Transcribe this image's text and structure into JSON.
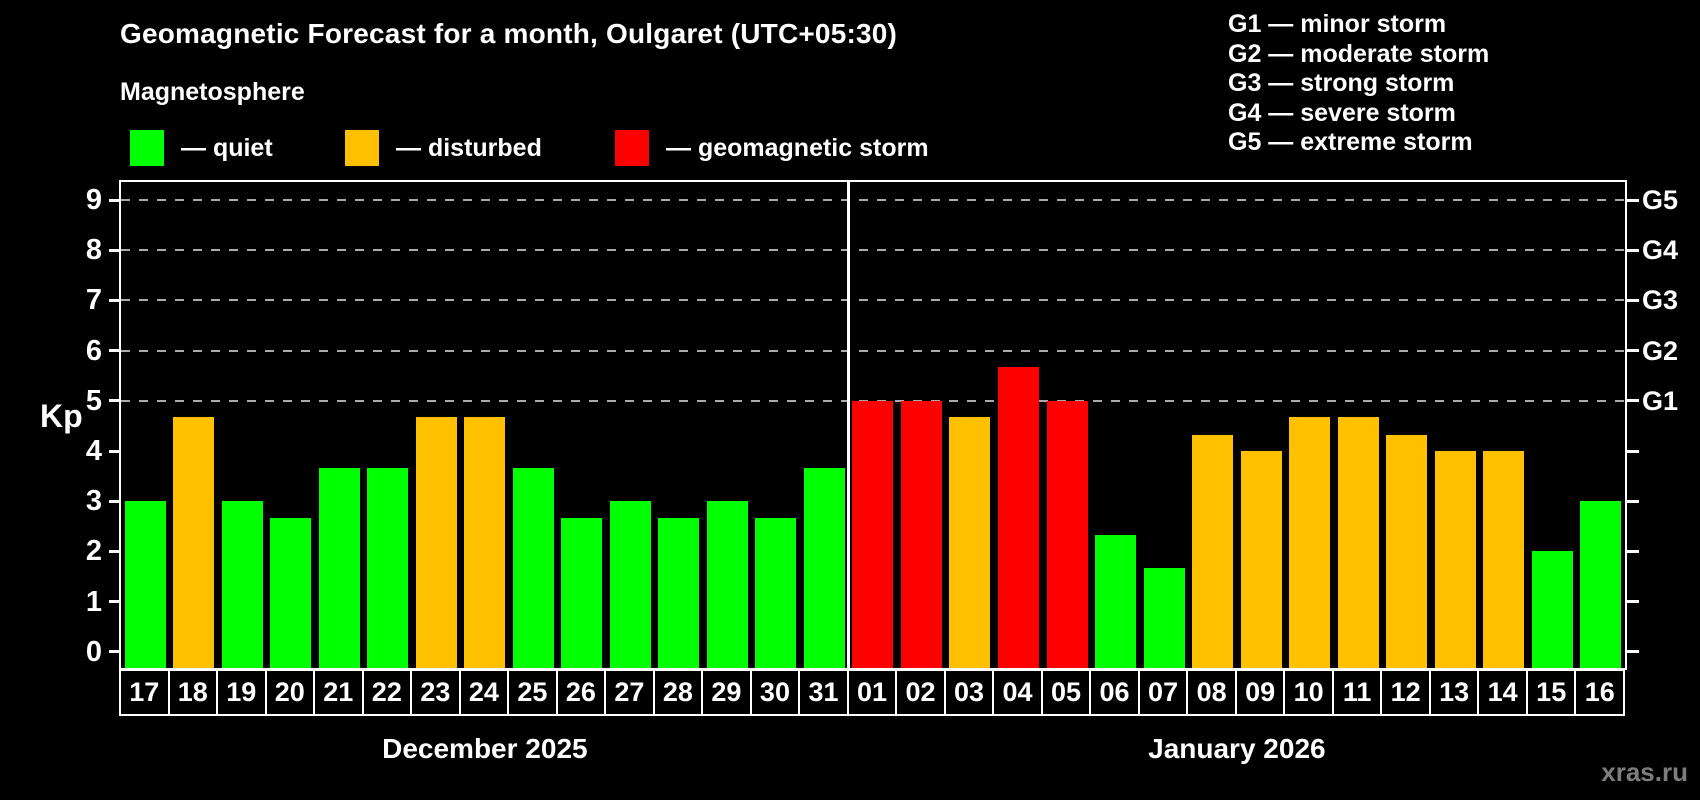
{
  "title": "Geomagnetic Forecast for a month, Oulgaret (UTC+05:30)",
  "subtitle": "Magnetosphere",
  "legend": {
    "items": [
      {
        "key": "quiet",
        "label": "— quiet",
        "color": "#00ff00"
      },
      {
        "key": "disturbed",
        "label": "— disturbed",
        "color": "#ffc000"
      },
      {
        "key": "storm",
        "label": "— geomagnetic storm",
        "color": "#ff0000"
      }
    ]
  },
  "g_legend": {
    "items": [
      {
        "label": "G1 — minor storm"
      },
      {
        "label": "G2 — moderate storm"
      },
      {
        "label": "G3 — strong storm"
      },
      {
        "label": "G4 — severe storm"
      },
      {
        "label": "G5 — extreme storm"
      }
    ]
  },
  "axis": {
    "kp_label": "Kp",
    "y_ticks": [
      "0",
      "1",
      "2",
      "3",
      "4",
      "5",
      "6",
      "7",
      "8",
      "9"
    ]
  },
  "watermark": "xras.ru",
  "colors": {
    "background": "#000000",
    "axis": "#ffffff",
    "grid": "#aaaaaa",
    "quiet": "#00ff00",
    "disturbed": "#ffc000",
    "storm": "#ff0000"
  },
  "chart_data": {
    "type": "bar",
    "title": "Geomagnetic Forecast for a month, Oulgaret (UTC+05:30)",
    "xlabel": "",
    "ylabel": "Kp",
    "ylim": [
      0,
      9
    ],
    "grid": "dashed horizontal gridlines at Kp 5,6,7,8,9 only",
    "legend_position": "top-left",
    "right_axis_ticks": [
      {
        "kp": 5,
        "label": "G1"
      },
      {
        "kp": 6,
        "label": "G2"
      },
      {
        "kp": 7,
        "label": "G3"
      },
      {
        "kp": 8,
        "label": "G4"
      },
      {
        "kp": 9,
        "label": "G5"
      }
    ],
    "months": [
      {
        "label": "December 2025",
        "days": 15
      },
      {
        "label": "January 2026",
        "days": 16
      }
    ],
    "categories": [
      "17",
      "18",
      "19",
      "20",
      "21",
      "22",
      "23",
      "24",
      "25",
      "26",
      "27",
      "28",
      "29",
      "30",
      "31",
      "01",
      "02",
      "03",
      "04",
      "05",
      "06",
      "07",
      "08",
      "09",
      "10",
      "11",
      "12",
      "13",
      "14",
      "15",
      "16"
    ],
    "series": [
      {
        "name": "Kp forecast",
        "values": [
          3.0,
          4.67,
          3.0,
          2.67,
          3.67,
          3.67,
          4.67,
          4.67,
          3.67,
          2.67,
          3.0,
          2.67,
          3.0,
          2.67,
          3.67,
          5.0,
          5.0,
          4.67,
          5.67,
          5.0,
          2.33,
          1.67,
          4.33,
          4.0,
          4.67,
          4.67,
          4.33,
          4.0,
          4.0,
          2.0,
          3.0
        ],
        "statuses": [
          "quiet",
          "disturbed",
          "quiet",
          "quiet",
          "quiet",
          "quiet",
          "disturbed",
          "disturbed",
          "quiet",
          "quiet",
          "quiet",
          "quiet",
          "quiet",
          "quiet",
          "quiet",
          "storm",
          "storm",
          "disturbed",
          "storm",
          "storm",
          "quiet",
          "quiet",
          "disturbed",
          "disturbed",
          "disturbed",
          "disturbed",
          "disturbed",
          "disturbed",
          "disturbed",
          "quiet",
          "quiet"
        ]
      }
    ]
  }
}
